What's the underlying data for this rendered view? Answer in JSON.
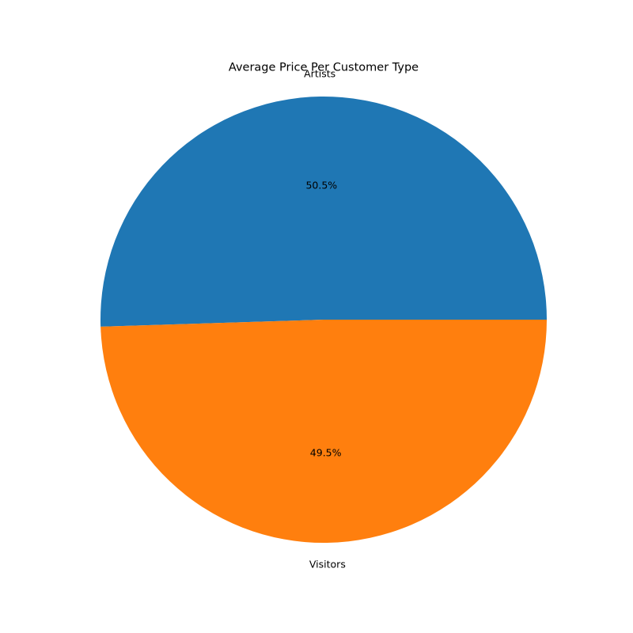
{
  "chart_data": {
    "type": "pie",
    "title": "Average Price Per Customer Type",
    "slices": [
      {
        "label": "Artists",
        "percent": 50.5,
        "percent_label": "50.5%",
        "color": "#1f77b4"
      },
      {
        "label": "Visitors",
        "percent": 49.5,
        "percent_label": "49.5%",
        "color": "#ff7f0e"
      }
    ],
    "start_angle_deg": 0,
    "direction": "counterclockwise",
    "legend": "none"
  }
}
